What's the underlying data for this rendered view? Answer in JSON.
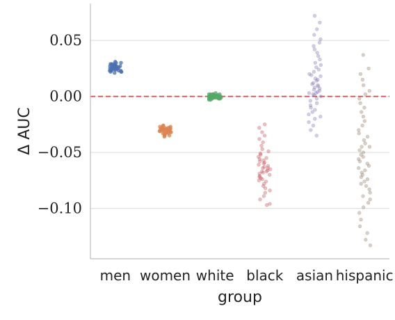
{
  "chart_data": {
    "type": "scatter",
    "subtype": "strip",
    "xlabel": "group",
    "ylabel": "Δ AUC",
    "ylim": [
      -0.145,
      0.083
    ],
    "yticks": [
      0.05,
      0.0,
      -0.05,
      -0.1
    ],
    "ytick_labels": [
      "0.05",
      "0.00",
      "−0.05",
      "−0.10"
    ],
    "grid": "horizontal",
    "reference_line": {
      "y": 0.0,
      "style": "dashed",
      "color": "#c44e52"
    },
    "categories": [
      "men",
      "women",
      "white",
      "black",
      "asian",
      "hispanic"
    ],
    "colors": [
      "#4c72b0",
      "#dd8452",
      "#55a868",
      "#c44e52",
      "#8172b3",
      "#937860"
    ],
    "series": [
      {
        "category": "men",
        "values": [
          0.031,
          0.03,
          0.029,
          0.029,
          0.028,
          0.028,
          0.027,
          0.027,
          0.027,
          0.026,
          0.026,
          0.026,
          0.026,
          0.025,
          0.025,
          0.025,
          0.025,
          0.024,
          0.024,
          0.024,
          0.023,
          0.023,
          0.023,
          0.022,
          0.022,
          0.021,
          0.03,
          0.028,
          0.027,
          0.026,
          0.025,
          0.024,
          0.023,
          0.022,
          0.029,
          0.028,
          0.026,
          0.025,
          0.024,
          0.023
        ]
      },
      {
        "category": "women",
        "values": [
          -0.026,
          -0.026,
          -0.027,
          -0.027,
          -0.028,
          -0.028,
          -0.028,
          -0.029,
          -0.029,
          -0.029,
          -0.029,
          -0.03,
          -0.03,
          -0.03,
          -0.03,
          -0.031,
          -0.031,
          -0.031,
          -0.032,
          -0.032,
          -0.032,
          -0.033,
          -0.033,
          -0.034,
          -0.034,
          -0.035,
          -0.035,
          -0.036,
          -0.028,
          -0.03,
          -0.031,
          -0.029,
          -0.027,
          -0.033,
          -0.03,
          -0.032,
          -0.029,
          -0.031,
          -0.028,
          -0.03
        ]
      },
      {
        "category": "white",
        "values": [
          0.003,
          0.002,
          0.002,
          0.002,
          0.001,
          0.001,
          0.001,
          0.001,
          0.001,
          0.0,
          0.0,
          0.0,
          0.0,
          0.0,
          0.0,
          -0.001,
          -0.001,
          -0.001,
          -0.001,
          -0.001,
          -0.002,
          -0.002,
          -0.002,
          -0.002,
          -0.003,
          -0.003,
          0.001,
          0.0,
          -0.001,
          0.002,
          -0.002,
          0.0,
          0.001,
          -0.001,
          0.0,
          -0.002,
          0.001,
          0.0,
          -0.001,
          0.002
        ]
      },
      {
        "category": "black",
        "values": [
          -0.025,
          -0.028,
          -0.032,
          -0.035,
          -0.038,
          -0.041,
          -0.044,
          -0.047,
          -0.049,
          -0.051,
          -0.052,
          -0.054,
          -0.055,
          -0.056,
          -0.057,
          -0.058,
          -0.059,
          -0.06,
          -0.061,
          -0.062,
          -0.063,
          -0.064,
          -0.064,
          -0.065,
          -0.066,
          -0.067,
          -0.067,
          -0.068,
          -0.069,
          -0.07,
          -0.071,
          -0.072,
          -0.073,
          -0.074,
          -0.075,
          -0.076,
          -0.078,
          -0.08,
          -0.082,
          -0.084,
          -0.086,
          -0.089,
          -0.092,
          -0.096,
          -0.097
        ]
      },
      {
        "category": "asian",
        "values": [
          0.072,
          0.066,
          0.06,
          0.055,
          0.051,
          0.048,
          0.045,
          0.042,
          0.039,
          0.036,
          0.033,
          0.03,
          0.028,
          0.026,
          0.024,
          0.022,
          0.02,
          0.018,
          0.016,
          0.014,
          0.012,
          0.01,
          0.009,
          0.008,
          0.006,
          0.005,
          0.004,
          0.003,
          0.002,
          0.001,
          0.0,
          -0.002,
          -0.004,
          -0.006,
          -0.008,
          -0.01,
          -0.012,
          -0.014,
          -0.016,
          -0.018,
          -0.02,
          -0.023,
          -0.026,
          -0.03,
          -0.035,
          0.019,
          0.015,
          0.011,
          0.007,
          0.003
        ]
      },
      {
        "category": "hispanic",
        "values": [
          0.037,
          0.025,
          0.02,
          0.015,
          0.01,
          0.005,
          0.002,
          -0.002,
          -0.006,
          -0.01,
          -0.014,
          -0.018,
          -0.022,
          -0.026,
          -0.03,
          -0.033,
          -0.036,
          -0.039,
          -0.042,
          -0.045,
          -0.048,
          -0.05,
          -0.052,
          -0.054,
          -0.056,
          -0.058,
          -0.06,
          -0.062,
          -0.064,
          -0.066,
          -0.068,
          -0.07,
          -0.072,
          -0.074,
          -0.076,
          -0.078,
          -0.08,
          -0.083,
          -0.086,
          -0.089,
          -0.092,
          -0.095,
          -0.099,
          -0.104,
          -0.11,
          -0.116,
          -0.122,
          -0.128,
          -0.133,
          -0.045
        ]
      }
    ]
  }
}
